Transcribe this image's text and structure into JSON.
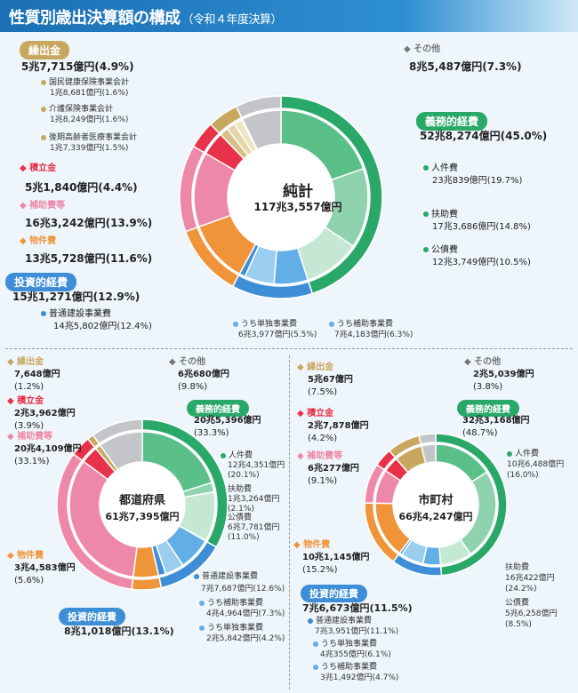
{
  "header": {
    "title": "性質別歳出決算額の構成",
    "subtitle": "（令和４年度決算）"
  },
  "colors": {
    "gimu": "#2aa86a",
    "gimu_inner": [
      "#5bbf8a",
      "#8ed3ad",
      "#c4e8d3"
    ],
    "toushi": "#3d8ed6",
    "toushi_inner": [
      "#62aee6",
      "#9bcdef"
    ],
    "busshi": "#f0943a",
    "hojo": "#ee88a8",
    "tsumitate": "#e8324a",
    "kuridashi": "#c8a860",
    "kuridashi_inner": [
      "#d8bf85",
      "#e6d5a8",
      "#efe4c4"
    ],
    "other": "#c3c5c8"
  },
  "main": {
    "center_label": "純計",
    "center_value": "117兆3,557億円",
    "gimu": {
      "label": "義務的経費",
      "value": "52兆8,274億円(45.0%)"
    },
    "jinken": {
      "label": "人件費",
      "value": "23兆839億円(19.7%)"
    },
    "fujo": {
      "label": "扶助費",
      "value": "17兆3,686億円(14.8%)"
    },
    "kousai": {
      "label": "公債費",
      "value": "12兆3,749億円(10.5%)"
    },
    "toushi": {
      "label": "投資的経費",
      "value": "15兆1,271億円(12.9%)"
    },
    "futsuken": {
      "label": "普通建設事業費",
      "value": "14兆5,802億円(12.4%)"
    },
    "tandoku": {
      "label": "うち単独事業費",
      "value": "6兆3,977億円(5.5%)"
    },
    "hojojigyo": {
      "label": "うち補助事業費",
      "value": "7兆4,183億円(6.3%)"
    },
    "busshi": {
      "label": "物件費",
      "value": "13兆5,728億円(11.6%)"
    },
    "hojo": {
      "label": "補助費等",
      "value": "16兆3,242億円(13.9%)"
    },
    "tsumitate": {
      "label": "積立金",
      "value": "5兆1,840億円(4.4%)"
    },
    "kuridashi": {
      "label": "繰出金",
      "value": "5兆7,715億円(4.9%)"
    },
    "kokuho": {
      "label": "国民健康保険事業会計",
      "value": "1兆8,681億円(1.6%)"
    },
    "kaigo": {
      "label": "介護保険事業会計",
      "value": "1兆8,249億円(1.6%)"
    },
    "kouki": {
      "label": "後期高齢者医療事業会計",
      "value": "1兆7,339億円(1.5%)"
    },
    "other": {
      "label": "その他",
      "value": "8兆5,487億円(7.3%)"
    }
  },
  "pref": {
    "center_label": "都道府県",
    "center_value": "61兆7,395億円",
    "kuridashi": {
      "label": "繰出金",
      "value1": "7,648億円",
      "value2": "(1.2%)"
    },
    "tsumitate": {
      "label": "積立金",
      "value1": "2兆3,962億円",
      "value2": "(3.9%)"
    },
    "hojo": {
      "label": "補助費等",
      "value1": "20兆4,109億円",
      "value2": "(33.1%)"
    },
    "other": {
      "label": "その他",
      "value1": "6兆680億円",
      "value2": "(9.8%)"
    },
    "gimu": {
      "label": "義務的経費",
      "value1": "20兆5,396億円",
      "value2": "(33.3%)"
    },
    "jinken": {
      "label": "人件費",
      "value1": "12兆4,351億円",
      "value2": "(20.1%)"
    },
    "fujo": {
      "label": "扶助費",
      "value1": "1兆3,264億円",
      "value2": "(2.1%)"
    },
    "kousai": {
      "label": "公債費",
      "value1": "6兆7,781億円",
      "value2": "(11.0%)"
    },
    "busshi": {
      "label": "物件費",
      "value1": "3兆4,583億円",
      "value2": "(5.6%)"
    },
    "futsuken": {
      "label": "普通建設事業費",
      "value": "7兆7,687億円(12.6%)"
    },
    "hojojigyo": {
      "label": "うち補助事業費",
      "value": "4兆4,964億円(7.3%)"
    },
    "tandoku": {
      "label": "うち単独事業費",
      "value": "2兆5,842億円(4.2%)"
    },
    "toushi": {
      "label": "投資的経費",
      "value": "8兆1,018億円(13.1%)"
    }
  },
  "muni": {
    "center_label": "市町村",
    "center_value": "66兆4,247億円",
    "kuridashi": {
      "label": "繰出金",
      "value1": "5兆67億円",
      "value2": "(7.5%)"
    },
    "tsumitate": {
      "label": "積立金",
      "value1": "2兆7,878億円",
      "value2": "(4.2%)"
    },
    "hojo": {
      "label": "補助費等",
      "value1": "6兆277億円",
      "value2": "(9.1%)"
    },
    "busshi": {
      "label": "物件費",
      "value1": "10兆1,145億円",
      "value2": "(15.2%)"
    },
    "toushi": {
      "label": "投資的経費",
      "value": "7兆6,673億円(11.5%)"
    },
    "futsuken": {
      "label": "普通建設事業費",
      "value": "7兆3,951億円(11.1%)"
    },
    "tandoku": {
      "label": "うち単独事業費",
      "value": "4兆355億円(6.1%)"
    },
    "hojojigyo": {
      "label": "うち補助事業費",
      "value": "3兆1,492億円(4.7%)"
    },
    "other": {
      "label": "その他",
      "value1": "2兆5,039億円",
      "value2": "(3.8%)"
    },
    "gimu": {
      "label": "義務的経費",
      "value1": "32兆3,168億円",
      "value2": "(48.7%)"
    },
    "jinken": {
      "label": "人件費",
      "value1": "10兆6,488億円",
      "value2": "(16.0%)"
    },
    "fujo": {
      "label": "扶助費",
      "value1": "16兆422億円",
      "value2": "(24.2%)"
    },
    "kousai": {
      "label": "公債費",
      "value1": "5兆6,258億円",
      "value2": "(8.5%)"
    }
  },
  "chart_data": [
    {
      "type": "pie",
      "title": "純計",
      "total": "117兆3,557億円",
      "outer": [
        {
          "name": "義務的経費",
          "value": 45.0
        },
        {
          "name": "投資的経費",
          "value": 12.9
        },
        {
          "name": "物件費",
          "value": 11.6
        },
        {
          "name": "補助費等",
          "value": 13.9
        },
        {
          "name": "積立金",
          "value": 4.4
        },
        {
          "name": "繰出金",
          "value": 4.9
        },
        {
          "name": "その他",
          "value": 7.3
        }
      ],
      "inner": [
        {
          "name": "人件費",
          "value": 19.7
        },
        {
          "name": "扶助費",
          "value": 14.8
        },
        {
          "name": "公債費",
          "value": 10.5
        },
        {
          "name": "うち補助事業費",
          "value": 6.3
        },
        {
          "name": "うち単独事業費",
          "value": 5.5
        },
        {
          "name": "国民健康保険事業会計",
          "value": 1.6
        },
        {
          "name": "介護保険事業会計",
          "value": 1.6
        },
        {
          "name": "後期高齢者医療事業会計",
          "value": 1.5
        }
      ]
    },
    {
      "type": "pie",
      "title": "都道府県",
      "total": "61兆7,395億円",
      "outer": [
        {
          "name": "義務的経費",
          "value": 33.3
        },
        {
          "name": "投資的経費",
          "value": 13.1
        },
        {
          "name": "物件費",
          "value": 5.6
        },
        {
          "name": "補助費等",
          "value": 33.1
        },
        {
          "name": "積立金",
          "value": 3.9
        },
        {
          "name": "繰出金",
          "value": 1.2
        },
        {
          "name": "その他",
          "value": 9.8
        }
      ],
      "inner": [
        {
          "name": "人件費",
          "value": 20.1
        },
        {
          "name": "扶助費",
          "value": 2.1
        },
        {
          "name": "公債費",
          "value": 11.0
        },
        {
          "name": "うち補助事業費",
          "value": 7.3
        },
        {
          "name": "うち単独事業費",
          "value": 4.2
        }
      ]
    },
    {
      "type": "pie",
      "title": "市町村",
      "total": "66兆4,247億円",
      "outer": [
        {
          "name": "義務的経費",
          "value": 48.7
        },
        {
          "name": "投資的経費",
          "value": 11.5
        },
        {
          "name": "物件費",
          "value": 15.2
        },
        {
          "name": "補助費等",
          "value": 9.1
        },
        {
          "name": "積立金",
          "value": 4.2
        },
        {
          "name": "繰出金",
          "value": 7.5
        },
        {
          "name": "その他",
          "value": 3.8
        }
      ],
      "inner": [
        {
          "name": "人件費",
          "value": 16.0
        },
        {
          "name": "扶助費",
          "value": 24.2
        },
        {
          "name": "公債費",
          "value": 8.5
        },
        {
          "name": "うち補助事業費",
          "value": 4.7
        },
        {
          "name": "うち単独事業費",
          "value": 6.1
        }
      ]
    }
  ]
}
